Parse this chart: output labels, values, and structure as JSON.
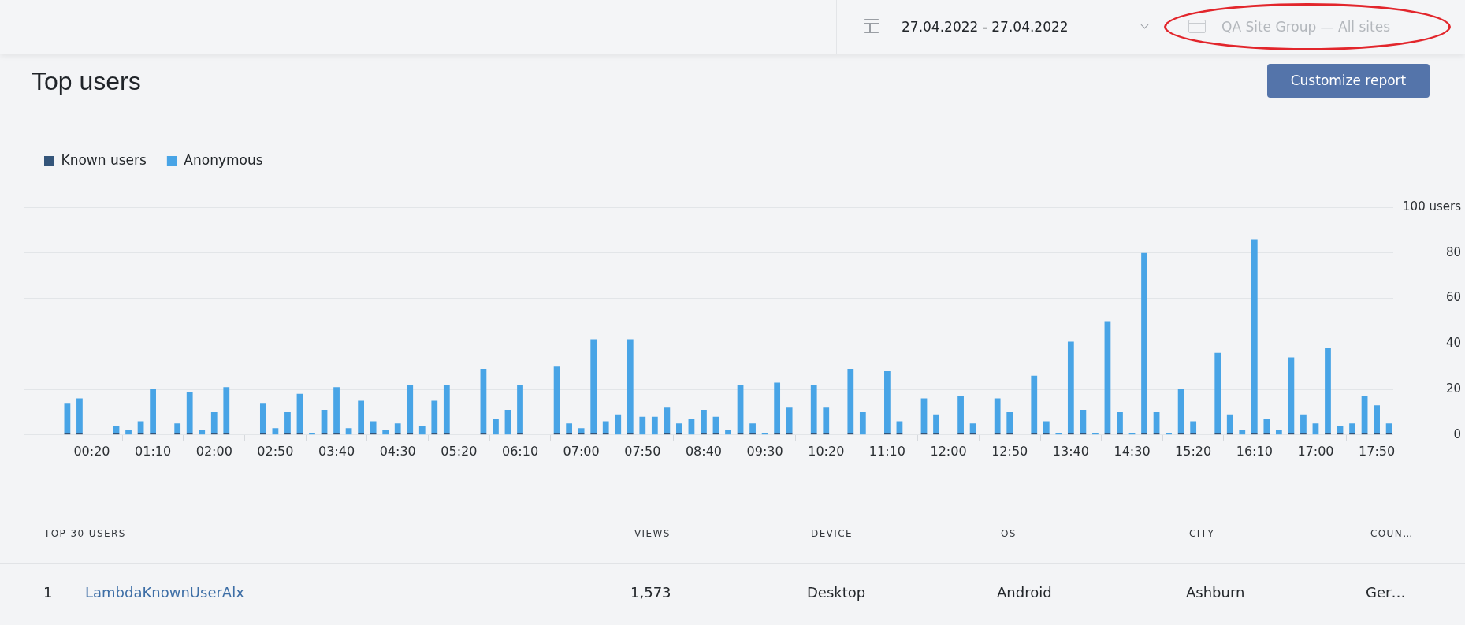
{
  "chart_data": {
    "type": "bar",
    "title": "Top users",
    "categories": [
      null,
      null,
      "00:20",
      null,
      null,
      null,
      null,
      "01:10",
      null,
      null,
      null,
      null,
      "02:00",
      null,
      null,
      null,
      null,
      "02:50",
      null,
      null,
      null,
      null,
      "03:40",
      null,
      null,
      null,
      null,
      "04:30",
      null,
      null,
      null,
      null,
      "05:20",
      null,
      null,
      null,
      null,
      "06:10",
      null,
      null,
      null,
      null,
      "07:00",
      null,
      null,
      null,
      null,
      "07:50",
      null,
      null,
      null,
      null,
      "08:40",
      null,
      null,
      null,
      null,
      "09:30",
      null,
      null,
      null,
      null,
      "10:20",
      null,
      null,
      null,
      null,
      "11:10",
      null,
      null,
      null,
      null,
      "12:00",
      null,
      null,
      null,
      null,
      "12:50",
      null,
      null,
      null,
      null,
      "13:40",
      null,
      null,
      null,
      null,
      "14:30",
      null,
      null,
      null,
      null,
      "15:20",
      null,
      null,
      null,
      null,
      "16:10",
      null,
      null,
      null,
      null,
      "17:00",
      null,
      null,
      null,
      null,
      "17:50",
      null
    ],
    "series": [
      {
        "name": "Known users",
        "color": "#34557a",
        "values": [
          1,
          1,
          null,
          null,
          1,
          null,
          1,
          1,
          null,
          1,
          1,
          null,
          1,
          1,
          null,
          null,
          1,
          null,
          1,
          1,
          null,
          1,
          1,
          null,
          1,
          1,
          null,
          1,
          1,
          null,
          1,
          1,
          null,
          null,
          1,
          null,
          null,
          1,
          null,
          null,
          1,
          1,
          1,
          1,
          1,
          null,
          1,
          null,
          null,
          1,
          1,
          null,
          1,
          1,
          null,
          1,
          1,
          null,
          1,
          1,
          null,
          1,
          1,
          null,
          1,
          null,
          null,
          1,
          1,
          null,
          1,
          1,
          null,
          1,
          1,
          null,
          1,
          1,
          null,
          1,
          1,
          null,
          1,
          1,
          null,
          1,
          1,
          null,
          1,
          1,
          null,
          1,
          1,
          null,
          1,
          1,
          null,
          1,
          1,
          null,
          1,
          1,
          null,
          1,
          1,
          1,
          1,
          1,
          1
        ]
      },
      {
        "name": "Anonymous",
        "color": "#48a4e6",
        "values": [
          13,
          15,
          null,
          null,
          3,
          2,
          5,
          19,
          null,
          4,
          18,
          2,
          9,
          20,
          null,
          null,
          13,
          3,
          9,
          17,
          1,
          10,
          20,
          3,
          14,
          5,
          2,
          4,
          21,
          4,
          14,
          21,
          null,
          null,
          28,
          7,
          11,
          21,
          null,
          null,
          29,
          4,
          2,
          41,
          5,
          9,
          41,
          8,
          8,
          11,
          4,
          7,
          10,
          7,
          2,
          21,
          4,
          1,
          22,
          11,
          null,
          21,
          11,
          null,
          28,
          10,
          null,
          27,
          5,
          null,
          15,
          8,
          null,
          16,
          4,
          null,
          15,
          9,
          null,
          25,
          5,
          1,
          40,
          10,
          1,
          49,
          9,
          1,
          79,
          9,
          1,
          19,
          5,
          null,
          35,
          8,
          2,
          85,
          6,
          2,
          33,
          8,
          5,
          37,
          3,
          4,
          16,
          12,
          4
        ]
      }
    ],
    "stacked": true,
    "ylim": [
      0,
      100
    ],
    "yticks": [
      0,
      20,
      40,
      60,
      80,
      {
        "value": 100,
        "label": "100 users"
      }
    ],
    "grid": "y",
    "legend": "top left",
    "annotations": [
      "27.04.2022 - 27.04.2022",
      "QA Site Group — All sites",
      "Customize report",
      "TOP 30 USERS",
      "VIEWS",
      "DEVICE",
      "OS",
      "CITY",
      "COUN…",
      "1",
      "LambdaKnownUserAlx",
      "1,573",
      "Desktop",
      "Android",
      "Ashburn",
      "Ger…"
    ]
  }
}
